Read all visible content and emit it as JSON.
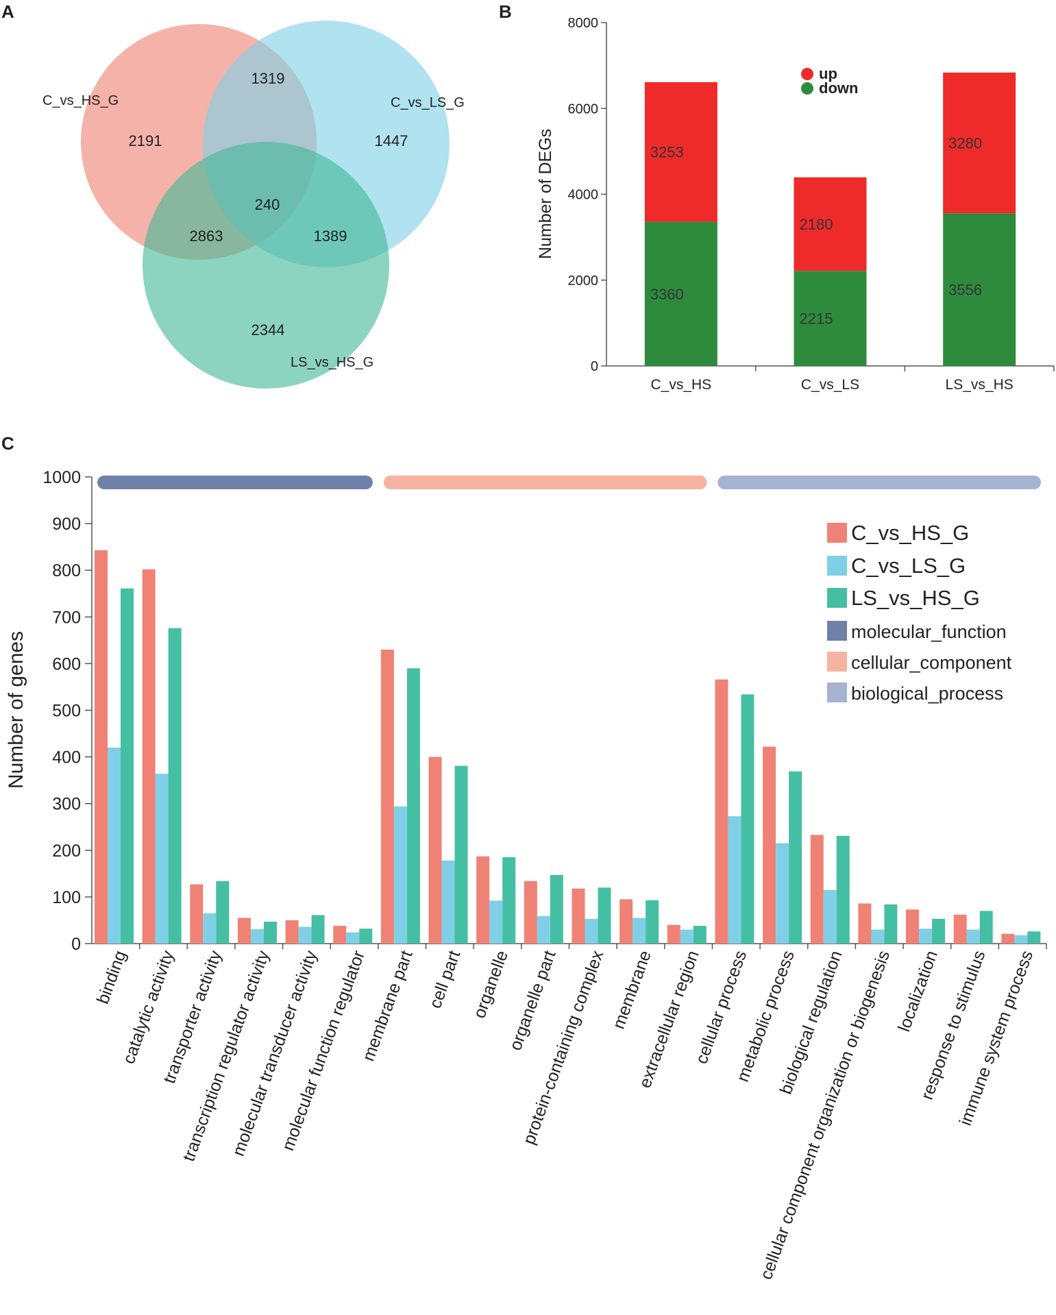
{
  "panels": {
    "a": "A",
    "b": "B",
    "c": "C"
  },
  "chart_data": [
    {
      "type": "venn",
      "sets": [
        {
          "name": "C_vs_HS_G",
          "color": "#ef8275"
        },
        {
          "name": "C_vs_LS_G",
          "color": "#7fd0e6"
        },
        {
          "name": "LS_vs_HS_G",
          "color": "#45b89a"
        }
      ],
      "regions": [
        {
          "sets": [
            "C_vs_HS_G"
          ],
          "value": 2191
        },
        {
          "sets": [
            "C_vs_LS_G"
          ],
          "value": 1447
        },
        {
          "sets": [
            "LS_vs_HS_G"
          ],
          "value": 2344
        },
        {
          "sets": [
            "C_vs_HS_G",
            "C_vs_LS_G"
          ],
          "value": 1319
        },
        {
          "sets": [
            "C_vs_HS_G",
            "LS_vs_HS_G"
          ],
          "value": 2863
        },
        {
          "sets": [
            "C_vs_LS_G",
            "LS_vs_HS_G"
          ],
          "value": 1389
        },
        {
          "sets": [
            "C_vs_HS_G",
            "C_vs_LS_G",
            "LS_vs_HS_G"
          ],
          "value": 240
        }
      ]
    },
    {
      "type": "bar",
      "stacked": true,
      "categories": [
        "C_vs_HS",
        "C_vs_LS",
        "LS_vs_HS"
      ],
      "series": [
        {
          "name": "down",
          "color": "#2e8b3e",
          "values": [
            3360,
            2215,
            3556
          ]
        },
        {
          "name": "up",
          "color": "#ee2a2a",
          "values": [
            3253,
            2180,
            3280
          ]
        }
      ],
      "legend_order": [
        "up",
        "down"
      ],
      "ylabel": "Number of DEGs",
      "ylim": [
        0,
        8000
      ],
      "yticks": [
        0,
        2000,
        4000,
        6000,
        8000
      ]
    },
    {
      "type": "bar",
      "categories": [
        "binding",
        "catalytic activity",
        "transporter activity",
        "transcription regulator activity",
        "molecular transducer activity",
        "molecular function regulator",
        "membrane part",
        "cell part",
        "organelle",
        "organelle part",
        "protein-containing complex",
        "membrane",
        "extracellular region",
        "cellular process",
        "metabolic process",
        "biological regulation",
        "cellular component organization or biogenesis",
        "localization",
        "response to stimulus",
        "immune system process"
      ],
      "series": [
        {
          "name": "C_vs_HS_G",
          "color": "#ef8275",
          "values": [
            843,
            802,
            127,
            55,
            50,
            38,
            630,
            400,
            187,
            134,
            118,
            95,
            40,
            566,
            422,
            233,
            86,
            73,
            62,
            21
          ]
        },
        {
          "name": "C_vs_LS_G",
          "color": "#7fd0e6",
          "values": [
            420,
            364,
            65,
            31,
            36,
            24,
            294,
            178,
            92,
            59,
            53,
            55,
            30,
            273,
            215,
            115,
            30,
            32,
            30,
            18
          ]
        },
        {
          "name": "LS_vs_HS_G",
          "color": "#45bfa3",
          "values": [
            761,
            676,
            134,
            47,
            61,
            32,
            590,
            381,
            185,
            147,
            120,
            93,
            38,
            534,
            369,
            231,
            84,
            53,
            70,
            26
          ]
        }
      ],
      "groups": [
        {
          "name": "molecular_function",
          "color": "#6f81a8",
          "count": 6
        },
        {
          "name": "cellular_component",
          "color": "#f6b4a0",
          "count": 7
        },
        {
          "name": "biological_process",
          "color": "#a6b2d2",
          "count": 7
        }
      ],
      "ylabel": "Number of genes",
      "ylim": [
        0,
        1000
      ],
      "yticks": [
        0,
        100,
        200,
        300,
        400,
        500,
        600,
        700,
        800,
        900,
        1000
      ]
    }
  ]
}
